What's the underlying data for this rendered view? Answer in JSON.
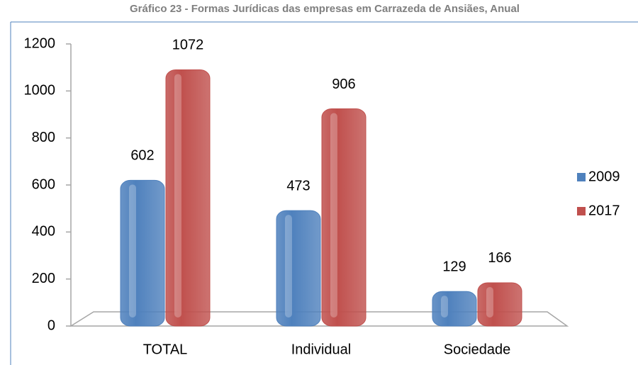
{
  "chart_data": {
    "type": "bar",
    "title": "Gráfico 23 - Formas Jurídicas das empresas em Carrazeda de Ansiães, Anual",
    "categories": [
      "TOTAL",
      "Individual",
      "Sociedade"
    ],
    "series": [
      {
        "name": "2009",
        "color": "#4f81bd",
        "values": [
          602,
          473,
          129
        ]
      },
      {
        "name": "2017",
        "color": "#c0504d",
        "values": [
          1072,
          906,
          166
        ]
      }
    ],
    "ylim": [
      0,
      1200
    ],
    "yticks": [
      0,
      200,
      400,
      600,
      800,
      1000,
      1200
    ],
    "legend": "right"
  }
}
